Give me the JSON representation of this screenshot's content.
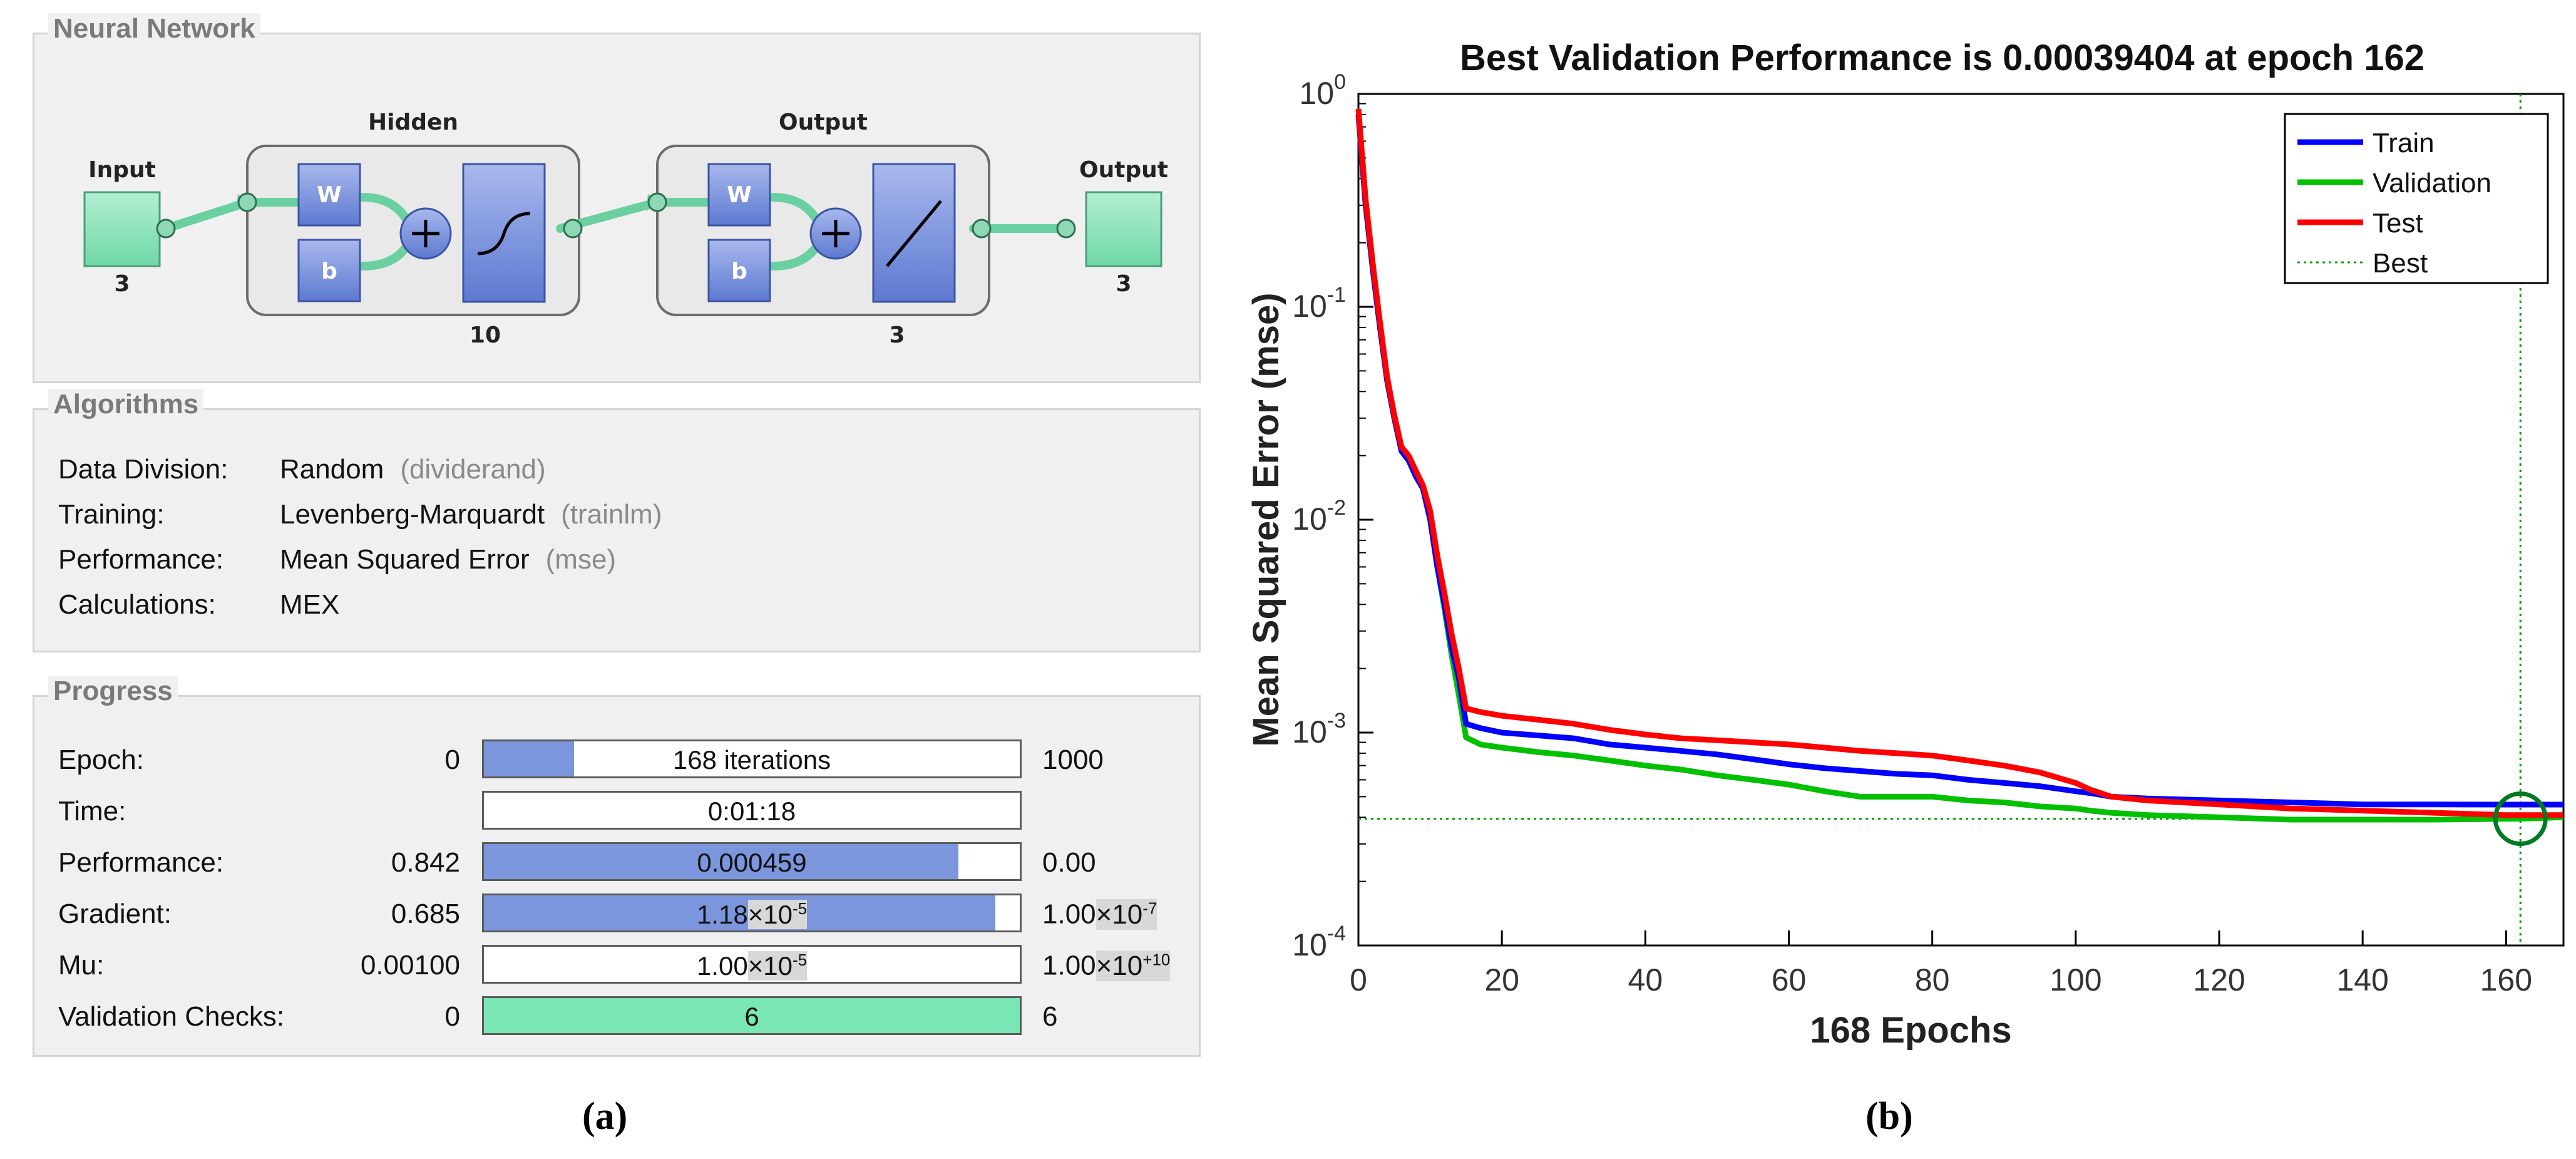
{
  "panel_a": {
    "nn": {
      "title": "Neural Network",
      "input_label": "Input",
      "input_count": "3",
      "hidden_label": "Hidden",
      "hidden_count": "10",
      "output_layer_label": "Output",
      "output_layer_count": "3",
      "output_label": "Output",
      "output_count": "3",
      "w": "W",
      "b": "b"
    },
    "algorithms": {
      "title": "Algorithms",
      "rows": [
        {
          "label": "Data Division:",
          "value": "Random",
          "fn": "(dividerand)"
        },
        {
          "label": "Training:",
          "value": "Levenberg-Marquardt",
          "fn": "(trainlm)"
        },
        {
          "label": "Performance:",
          "value": "Mean Squared Error",
          "fn": "(mse)"
        },
        {
          "label": "Calculations:",
          "value": "MEX",
          "fn": ""
        }
      ]
    },
    "progress": {
      "title": "Progress",
      "rows": [
        {
          "label": "Epoch:",
          "start": "0",
          "bar_text": "168 iterations",
          "end": "1000",
          "fill": 0.168,
          "fill_color": "#7b96dd"
        },
        {
          "label": "Time:",
          "start": "",
          "bar_text": "0:01:18",
          "end": "",
          "fill": 0,
          "fill_color": "#7b96dd"
        },
        {
          "label": "Performance:",
          "start": "0.842",
          "bar_text": "0.000459",
          "end": "0.00",
          "fill": 0.885,
          "fill_color": "#7b96dd"
        },
        {
          "label": "Gradient:",
          "start": "0.685",
          "bar_mant": "1.18",
          "bar_exp": "-5",
          "end_mant": "1.00",
          "end_exp": "-7",
          "fill": 0.955,
          "fill_color": "#7b96dd"
        },
        {
          "label": "Mu:",
          "start": "0.00100",
          "bar_mant": "1.00",
          "bar_exp": "-5",
          "end_mant": "1.00",
          "end_exp": "+10",
          "fill": 0,
          "fill_color": "#7b96dd"
        },
        {
          "label": "Validation Checks:",
          "start": "0",
          "bar_text": "6",
          "end": "6",
          "fill": 1.0,
          "fill_color": "#79e6b3"
        }
      ],
      "times_sign": "×10"
    },
    "caption": "(a)"
  },
  "chart_data": {
    "type": "line",
    "title": "Best Validation Performance is 0.00039404 at epoch 162",
    "xlabel": "168 Epochs",
    "ylabel": "Mean Squared Error  (mse)",
    "yscale": "log",
    "xlim": [
      0,
      168
    ],
    "ylim": [
      0.0001,
      1
    ],
    "x_ticks": [
      0,
      20,
      40,
      60,
      80,
      100,
      120,
      140,
      160
    ],
    "y_ticks": [
      {
        "value": 1,
        "base": "10",
        "exp": "0"
      },
      {
        "value": 0.1,
        "base": "10",
        "exp": "-1"
      },
      {
        "value": 0.01,
        "base": "10",
        "exp": "-2"
      },
      {
        "value": 0.001,
        "base": "10",
        "exp": "-3"
      },
      {
        "value": 0.0001,
        "base": "10",
        "exp": "-4"
      }
    ],
    "best_epoch": 162,
    "best_value": 0.00039404,
    "legend_position": "top-right",
    "series": [
      {
        "name": "Train",
        "color": "#0000ff",
        "x": [
          0,
          1,
          2,
          3,
          4,
          5,
          6,
          7,
          8,
          9,
          10,
          11,
          12,
          13,
          14,
          15,
          17,
          20,
          25,
          30,
          35,
          40,
          45,
          50,
          55,
          60,
          65,
          70,
          75,
          80,
          85,
          90,
          95,
          100,
          102,
          105,
          110,
          120,
          130,
          140,
          150,
          160,
          168
        ],
        "y": [
          0.8,
          0.3,
          0.15,
          0.08,
          0.045,
          0.03,
          0.021,
          0.019,
          0.016,
          0.014,
          0.01,
          0.006,
          0.004,
          0.0025,
          0.0018,
          0.0011,
          0.00105,
          0.001,
          0.00097,
          0.00094,
          0.00088,
          0.00085,
          0.00082,
          0.00079,
          0.00075,
          0.00071,
          0.00068,
          0.00066,
          0.00064,
          0.00063,
          0.0006,
          0.00058,
          0.00056,
          0.00053,
          0.00052,
          0.0005,
          0.00049,
          0.00048,
          0.00047,
          0.00046,
          0.00046,
          0.000459,
          0.000459
        ]
      },
      {
        "name": "Validation",
        "color": "#00c000",
        "x": [
          0,
          1,
          2,
          3,
          4,
          5,
          6,
          7,
          8,
          9,
          10,
          11,
          12,
          13,
          14,
          15,
          17,
          20,
          25,
          30,
          35,
          40,
          45,
          50,
          55,
          60,
          65,
          70,
          75,
          80,
          85,
          90,
          95,
          100,
          102,
          105,
          110,
          120,
          130,
          140,
          150,
          162,
          168
        ],
        "y": [
          0.8,
          0.3,
          0.15,
          0.08,
          0.045,
          0.03,
          0.021,
          0.019,
          0.016,
          0.014,
          0.01,
          0.006,
          0.0038,
          0.0023,
          0.0015,
          0.00095,
          0.00088,
          0.00085,
          0.00081,
          0.00078,
          0.00074,
          0.0007,
          0.00067,
          0.00063,
          0.0006,
          0.00057,
          0.00053,
          0.0005,
          0.0005,
          0.0005,
          0.00048,
          0.00047,
          0.00045,
          0.00044,
          0.00043,
          0.00042,
          0.00041,
          0.0004,
          0.00039,
          0.00039,
          0.00039,
          0.00039404,
          0.0004
        ]
      },
      {
        "name": "Test",
        "color": "#ff0000",
        "x": [
          0,
          1,
          2,
          3,
          4,
          5,
          6,
          7,
          8,
          9,
          10,
          11,
          12,
          13,
          14,
          15,
          17,
          20,
          25,
          30,
          35,
          40,
          45,
          50,
          55,
          60,
          65,
          70,
          75,
          80,
          85,
          90,
          95,
          100,
          102,
          105,
          110,
          120,
          130,
          140,
          150,
          160,
          168
        ],
        "y": [
          0.85,
          0.32,
          0.16,
          0.085,
          0.047,
          0.031,
          0.022,
          0.02,
          0.017,
          0.0145,
          0.011,
          0.0068,
          0.0045,
          0.0029,
          0.002,
          0.0013,
          0.00125,
          0.0012,
          0.00115,
          0.0011,
          0.00103,
          0.00098,
          0.00094,
          0.00092,
          0.0009,
          0.00088,
          0.00085,
          0.00082,
          0.0008,
          0.00078,
          0.00074,
          0.0007,
          0.00065,
          0.00058,
          0.00054,
          0.0005,
          0.00048,
          0.00046,
          0.00044,
          0.00043,
          0.00042,
          0.00041,
          0.00041
        ]
      },
      {
        "name": "Best",
        "color": "#00a000",
        "style": "dotted"
      }
    ],
    "caption": "(b)"
  }
}
